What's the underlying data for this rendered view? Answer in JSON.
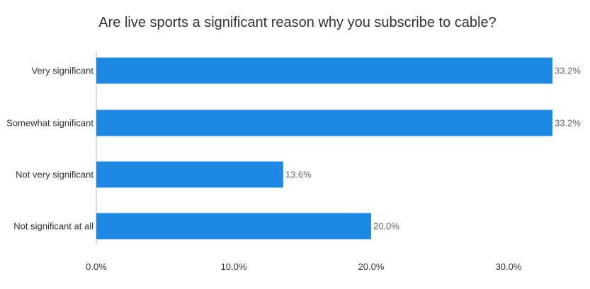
{
  "chart_data": {
    "type": "bar",
    "orientation": "horizontal",
    "title": "Are live sports a significant reason why you subscribe to cable?",
    "categories": [
      "Very significant",
      "Somewhat significant",
      "Not very significant",
      "Not significant at all"
    ],
    "values": [
      33.2,
      33.2,
      13.6,
      20.0
    ],
    "value_labels": [
      "33.2%",
      "33.2%",
      "13.6%",
      "20.0%"
    ],
    "xlabel": "",
    "ylabel": "",
    "xlim": [
      0,
      35
    ],
    "xticks": [
      0,
      10,
      20,
      30
    ],
    "xtick_labels": [
      "0.0%",
      "10.0%",
      "20.0%",
      "30.0%"
    ],
    "grid": false,
    "legend": "none",
    "colors": {
      "bar": "#1e88e5",
      "text": "#333333",
      "value_label": "#666666",
      "axis": "#bbbbbb"
    }
  }
}
